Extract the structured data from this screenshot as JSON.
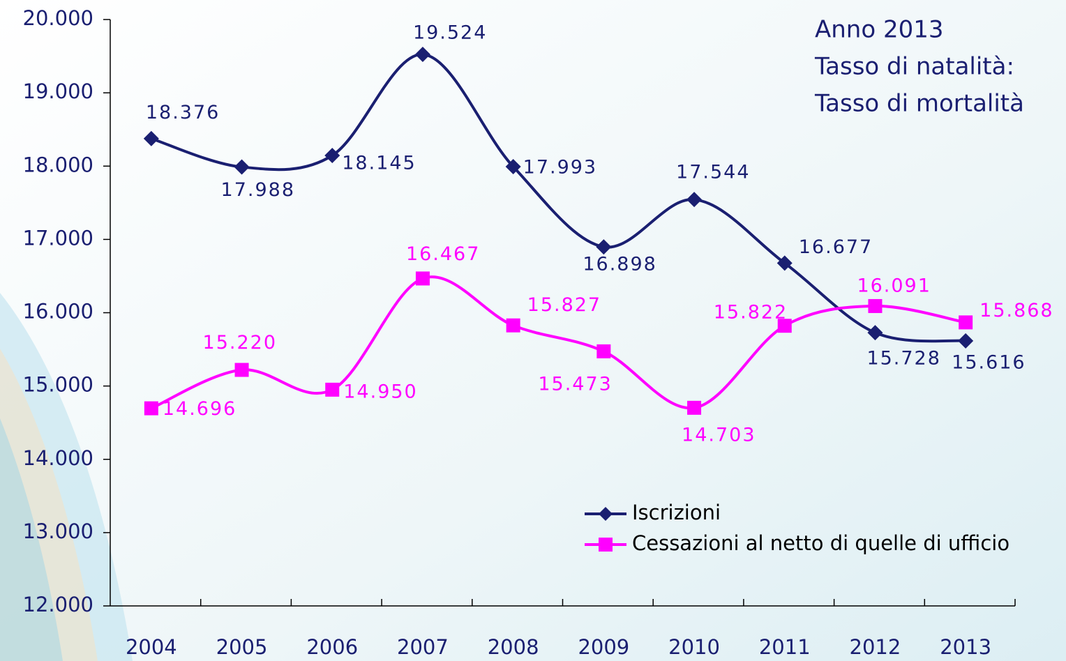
{
  "chart_data": {
    "type": "line",
    "annotations": [
      "Anno 2013",
      "Tasso di natalità:",
      "Tasso di mortalità"
    ],
    "categories": [
      "2004",
      "2005",
      "2006",
      "2007",
      "2008",
      "2009",
      "2010",
      "2011",
      "2012",
      "2013"
    ],
    "series": [
      {
        "name": "Iscrizioni",
        "color": "#1a1f71",
        "values": [
          18376,
          17988,
          18145,
          19524,
          17993,
          16898,
          17544,
          16677,
          15728,
          15616
        ],
        "value_labels": [
          "18.376",
          "17.988",
          "18.145",
          "19.524",
          "17.993",
          "16.898",
          "17.544",
          "16.677",
          "15.728",
          "15.616"
        ]
      },
      {
        "name": "Cessazioni al netto di quelle di ufficio",
        "color": "#ff00ff",
        "values": [
          14696,
          15220,
          14950,
          16467,
          15827,
          15473,
          14703,
          15822,
          16091,
          15868
        ],
        "value_labels": [
          "14.696",
          "15.220",
          "14.950",
          "16.467",
          "15.827",
          "15.473",
          "14.703",
          "15.822",
          "16.091",
          "15.868"
        ]
      }
    ],
    "ylim": [
      12000,
      20000
    ],
    "yticks": [
      {
        "value": 12000,
        "label": "12.000"
      },
      {
        "value": 13000,
        "label": "13.000"
      },
      {
        "value": 14000,
        "label": "14.000"
      },
      {
        "value": 15000,
        "label": "15.000"
      },
      {
        "value": 16000,
        "label": "16.000"
      },
      {
        "value": 17000,
        "label": "17.000"
      },
      {
        "value": 18000,
        "label": "18.000"
      },
      {
        "value": 19000,
        "label": "19.000"
      },
      {
        "value": 20000,
        "label": "20.000"
      }
    ],
    "legend": "lower right"
  }
}
